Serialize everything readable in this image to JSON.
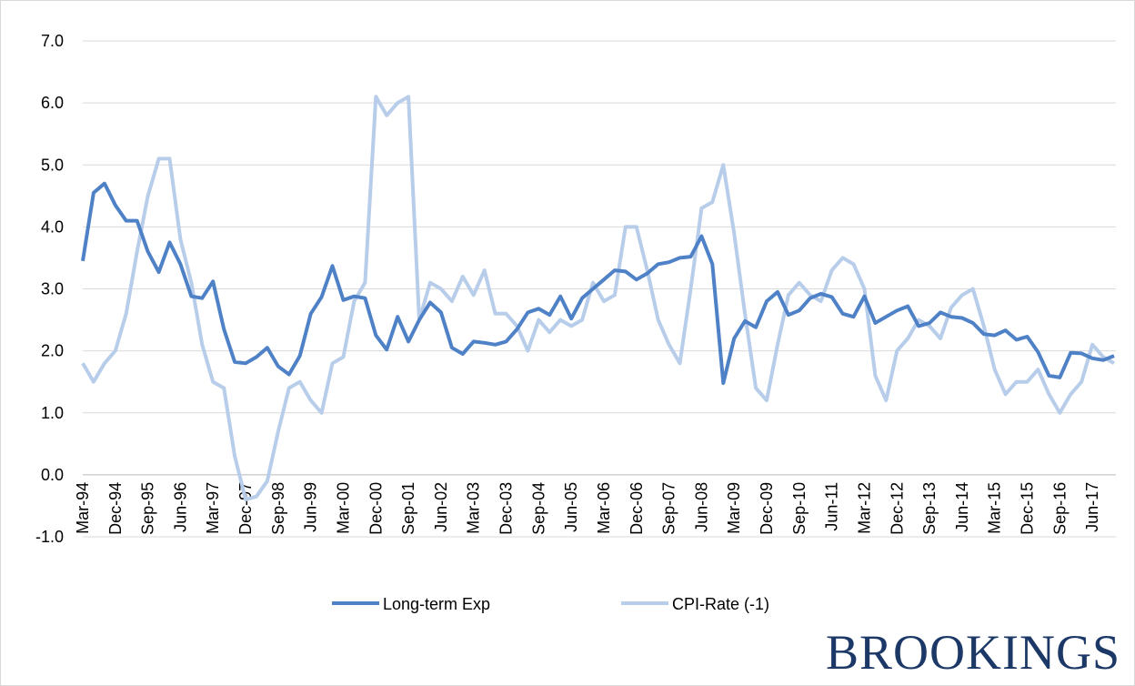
{
  "chart_data": {
    "type": "line",
    "brand": "BROOKINGS",
    "categories": [
      "Mar-94",
      null,
      null,
      "Dec-94",
      null,
      null,
      "Sep-95",
      null,
      null,
      "Jun-96",
      null,
      null,
      "Mar-97",
      null,
      null,
      "Dec-97",
      null,
      null,
      "Sep-98",
      null,
      null,
      "Jun-99",
      null,
      null,
      "Mar-00",
      null,
      null,
      "Dec-00",
      null,
      null,
      "Sep-01",
      null,
      null,
      "Jun-02",
      null,
      null,
      "Mar-03",
      null,
      null,
      "Dec-03",
      null,
      null,
      "Sep-04",
      null,
      null,
      "Jun-05",
      null,
      null,
      "Mar-06",
      null,
      null,
      "Dec-06",
      null,
      null,
      "Sep-07",
      null,
      null,
      "Jun-08",
      null,
      null,
      "Mar-09",
      null,
      null,
      "Dec-09",
      null,
      null,
      "Sep-10",
      null,
      null,
      "Jun-11",
      null,
      null,
      "Mar-12",
      null,
      null,
      "Dec-12",
      null,
      null,
      "Sep-13",
      null,
      null,
      "Jun-14",
      null,
      null,
      "Mar-15",
      null,
      null,
      "Dec-15",
      null,
      null,
      "Sep-16",
      null,
      null,
      "Jun-17",
      null,
      null
    ],
    "series": [
      {
        "name": "Long-term Exp",
        "color": "#4f81c7",
        "values": [
          3.45,
          4.55,
          4.7,
          4.35,
          4.1,
          4.1,
          3.6,
          3.27,
          3.75,
          3.4,
          2.88,
          2.85,
          3.12,
          2.35,
          1.82,
          1.8,
          1.9,
          2.05,
          1.75,
          1.62,
          1.92,
          2.6,
          2.87,
          3.37,
          2.82,
          2.88,
          2.85,
          2.25,
          2.02,
          2.55,
          2.15,
          2.5,
          2.78,
          2.62,
          2.05,
          1.95,
          2.15,
          2.13,
          2.1,
          2.15,
          2.35,
          2.62,
          2.68,
          2.58,
          2.88,
          2.52,
          2.85,
          3.0,
          3.15,
          3.3,
          3.28,
          3.15,
          3.25,
          3.4,
          3.43,
          3.5,
          3.52,
          3.85,
          3.4,
          1.48,
          2.2,
          2.48,
          2.38,
          2.8,
          2.95,
          2.58,
          2.65,
          2.85,
          2.92,
          2.87,
          2.6,
          2.55,
          2.88,
          2.45,
          2.55,
          2.65,
          2.72,
          2.4,
          2.45,
          2.62,
          2.55,
          2.53,
          2.45,
          2.27,
          2.25,
          2.33,
          2.18,
          2.23,
          1.98,
          1.6,
          1.57,
          1.97,
          1.96,
          1.88,
          1.85,
          1.92
        ]
      },
      {
        "name": "CPI-Rate (-1)",
        "color": "#b7cdea",
        "values": [
          1.8,
          1.5,
          1.8,
          2.0,
          2.6,
          3.6,
          4.5,
          5.1,
          5.1,
          3.8,
          3.1,
          2.1,
          1.5,
          1.4,
          0.3,
          -0.4,
          -0.35,
          -0.1,
          0.7,
          1.4,
          1.5,
          1.2,
          1.0,
          1.8,
          1.9,
          2.8,
          3.1,
          6.1,
          5.8,
          6.0,
          6.1,
          2.5,
          3.1,
          3.0,
          2.8,
          3.2,
          2.9,
          3.3,
          2.6,
          2.6,
          2.4,
          2.0,
          2.5,
          2.3,
          2.5,
          2.4,
          2.5,
          3.1,
          2.8,
          2.9,
          4.0,
          4.0,
          3.3,
          2.5,
          2.1,
          1.8,
          3.0,
          4.3,
          4.4,
          5.0,
          3.9,
          2.6,
          1.4,
          1.2,
          2.1,
          2.9,
          3.1,
          2.9,
          2.8,
          3.3,
          3.5,
          3.4,
          3.0,
          1.6,
          1.2,
          2.0,
          2.2,
          2.5,
          2.4,
          2.2,
          2.7,
          2.9,
          3.0,
          2.4,
          1.7,
          1.3,
          1.5,
          1.5,
          1.7,
          1.3,
          1.0,
          1.3,
          1.5,
          2.1,
          1.9,
          1.8
        ]
      }
    ],
    "ylim": [
      -1,
      7
    ],
    "yticks": [
      {
        "value": -1,
        "label": "-1.0"
      },
      {
        "value": 0,
        "label": "0.0"
      },
      {
        "value": 1,
        "label": "1.0"
      },
      {
        "value": 2,
        "label": "2.0"
      },
      {
        "value": 3,
        "label": "3.0"
      },
      {
        "value": 4,
        "label": "4.0"
      },
      {
        "value": 5,
        "label": "5.0"
      },
      {
        "value": 6,
        "label": "6.0"
      },
      {
        "value": 7,
        "label": "7.0"
      }
    ],
    "grid": true,
    "legend": "bottom"
  }
}
